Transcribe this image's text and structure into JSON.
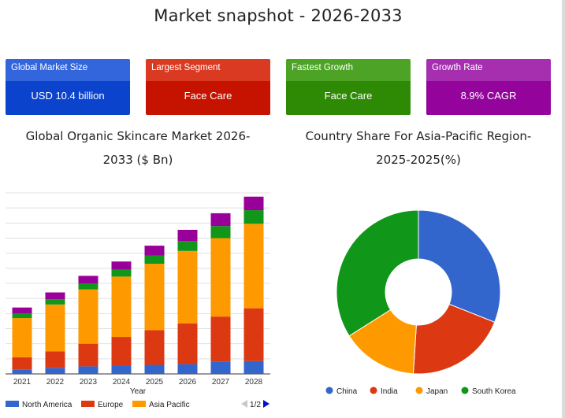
{
  "page": {
    "title": "Market snapshot - 2026-2033"
  },
  "cards": [
    {
      "header": "Global Market Size",
      "value": "USD 10.4 billion",
      "color": "#0b43cc",
      "header_color": "#3366dd"
    },
    {
      "header": "Largest Segment",
      "value": "Face Care",
      "color": "#c61300",
      "header_color": "#db3a22"
    },
    {
      "header": "Fastest Growth",
      "value": "Face Care",
      "color": "#2e8a05",
      "header_color": "#4ca325"
    },
    {
      "header": "Growth Rate",
      "value": "8.9% CAGR",
      "color": "#94049c",
      "header_color": "#a62fb0"
    }
  ],
  "chart_data": [
    {
      "type": "bar",
      "stacked": true,
      "title": "Global Organic Skincare Market 2026-2033 ($ Bn)",
      "xlabel": "Year",
      "ylabel": "",
      "ylim": [
        0,
        12
      ],
      "grid": true,
      "categories": [
        "2021",
        "2022",
        "2023",
        "2024",
        "2025",
        "2026",
        "2027",
        "2028"
      ],
      "series": [
        {
          "name": "North America",
          "color": "#3366cc",
          "values": [
            0.3,
            0.4,
            0.5,
            0.55,
            0.6,
            0.65,
            0.8,
            0.85
          ]
        },
        {
          "name": "Europe",
          "color": "#dc3912",
          "values": [
            0.8,
            1.1,
            1.5,
            1.9,
            2.3,
            2.7,
            3.0,
            3.5
          ]
        },
        {
          "name": "Asia Pacific",
          "color": "#ff9900",
          "values": [
            2.6,
            3.1,
            3.6,
            4.0,
            4.4,
            4.8,
            5.2,
            5.6
          ]
        },
        {
          "name": "",
          "color": "#109618",
          "values": [
            0.3,
            0.35,
            0.4,
            0.45,
            0.55,
            0.65,
            0.8,
            0.9
          ]
        },
        {
          "name": "",
          "color": "#990099",
          "values": [
            0.4,
            0.45,
            0.5,
            0.55,
            0.65,
            0.75,
            0.85,
            0.9
          ]
        }
      ],
      "legend": {
        "position": "bottom",
        "page": "1/2"
      }
    },
    {
      "type": "pie",
      "donut": true,
      "title": "Country Share For Asia-Pacific Region- 2025-2025(%)",
      "slices": [
        {
          "label": "China",
          "value": 31,
          "color": "#3366cc"
        },
        {
          "label": "India",
          "value": 20,
          "color": "#dc3912"
        },
        {
          "label": "Japan",
          "value": 15,
          "color": "#ff9900"
        },
        {
          "label": "South Korea",
          "value": 34,
          "color": "#109618"
        }
      ],
      "legend": {
        "position": "bottom"
      }
    }
  ]
}
